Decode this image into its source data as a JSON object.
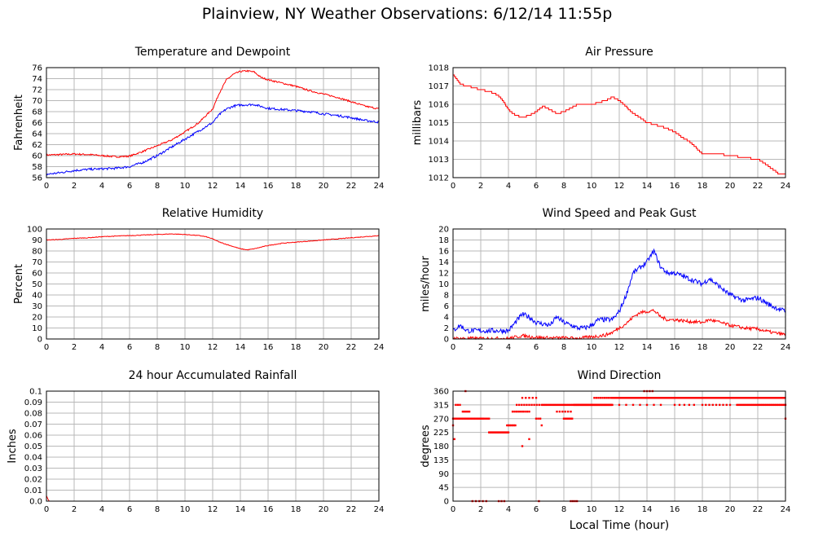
{
  "title": "Plainview, NY Weather Observations: 6/12/14 11:55p",
  "x_axis_label": "Local Time (hour)",
  "colors": {
    "primary": "#ff0000",
    "secondary": "#0000ff",
    "grid": "#b8b8b8"
  },
  "chart_data": [
    {
      "id": "temperature",
      "type": "line",
      "title": "Temperature and Dewpoint",
      "ylabel": "Fahrenheit",
      "xlim": [
        0,
        24
      ],
      "ylim": [
        56,
        76
      ],
      "xticks": [
        0,
        2,
        4,
        6,
        8,
        10,
        12,
        14,
        16,
        18,
        20,
        22,
        24
      ],
      "yticks": [
        56,
        58,
        60,
        62,
        64,
        66,
        68,
        70,
        72,
        74,
        76
      ],
      "grid": true,
      "series": [
        {
          "color": "#ff0000",
          "noise": 0.15,
          "x": [
            0,
            1,
            2,
            3,
            4,
            5,
            6,
            7,
            8,
            9,
            10,
            11,
            12,
            12.5,
            13,
            13.5,
            14,
            14.5,
            15,
            15.5,
            16,
            17,
            18,
            19,
            20,
            21,
            22,
            23,
            24
          ],
          "y": [
            60.1,
            60.2,
            60.3,
            60.2,
            60.0,
            59.8,
            59.9,
            60.8,
            61.8,
            62.8,
            64.3,
            66.0,
            68.5,
            71.5,
            73.8,
            74.8,
            75.3,
            75.4,
            75.2,
            74.2,
            73.8,
            73.2,
            72.6,
            71.8,
            71.2,
            70.6,
            69.8,
            69.0,
            68.5
          ]
        },
        {
          "color": "#0000ff",
          "noise": 0.2,
          "x": [
            0,
            1,
            2,
            3,
            4,
            5,
            6,
            7,
            8,
            9,
            10,
            11,
            12,
            12.5,
            13,
            13.5,
            14,
            15,
            16,
            17,
            18,
            19,
            20,
            21,
            22,
            23,
            24
          ],
          "y": [
            56.6,
            56.9,
            57.3,
            57.5,
            57.6,
            57.7,
            58.0,
            58.8,
            60.0,
            61.5,
            63.0,
            64.5,
            66.0,
            67.5,
            68.5,
            69.0,
            69.2,
            69.3,
            68.6,
            68.4,
            68.2,
            68.0,
            67.6,
            67.3,
            66.9,
            66.4,
            66.1
          ]
        }
      ]
    },
    {
      "id": "pressure",
      "type": "line",
      "title": "Air Pressure",
      "ylabel": "millibars",
      "xlim": [
        0,
        24
      ],
      "ylim": [
        1012,
        1018
      ],
      "xticks": [
        0,
        2,
        4,
        6,
        8,
        10,
        12,
        14,
        16,
        18,
        20,
        22,
        24
      ],
      "yticks": [
        1012,
        1013,
        1014,
        1015,
        1016,
        1017,
        1018
      ],
      "grid": true,
      "series": [
        {
          "color": "#ff0000",
          "step": 0.1,
          "noise": 0,
          "x": [
            0,
            0.5,
            1,
            2,
            3,
            3.5,
            4,
            4.5,
            5,
            5.5,
            6,
            6.5,
            7,
            7.5,
            8,
            9,
            10,
            11,
            11.5,
            12,
            13,
            14,
            15,
            16,
            16.5,
            17,
            18,
            19,
            20,
            21,
            22,
            23,
            23.5,
            24
          ],
          "y": [
            1017.6,
            1017.1,
            1017.0,
            1016.8,
            1016.6,
            1016.3,
            1015.7,
            1015.4,
            1015.3,
            1015.4,
            1015.6,
            1015.9,
            1015.7,
            1015.5,
            1015.6,
            1016.0,
            1016.0,
            1016.2,
            1016.4,
            1016.2,
            1015.5,
            1015.0,
            1014.8,
            1014.5,
            1014.2,
            1014.0,
            1013.3,
            1013.3,
            1013.2,
            1013.1,
            1013.0,
            1012.5,
            1012.2,
            1012.2
          ]
        }
      ]
    },
    {
      "id": "humidity",
      "type": "line",
      "title": "Relative Humidity",
      "ylabel": "Percent",
      "xlim": [
        0,
        24
      ],
      "ylim": [
        0,
        100
      ],
      "xticks": [
        0,
        2,
        4,
        6,
        8,
        10,
        12,
        14,
        16,
        18,
        20,
        22,
        24
      ],
      "yticks": [
        0,
        10,
        20,
        30,
        40,
        50,
        60,
        70,
        80,
        90,
        100
      ],
      "grid": true,
      "series": [
        {
          "color": "#ff0000",
          "noise": 0.3,
          "x": [
            0,
            1,
            2,
            3,
            4,
            5,
            6,
            7,
            8,
            9,
            10,
            11,
            11.5,
            12,
            12.5,
            13,
            13.5,
            14,
            14.5,
            15,
            16,
            17,
            18,
            19,
            20,
            21,
            22,
            23,
            24
          ],
          "y": [
            90,
            90.5,
            91.5,
            92,
            93,
            93.5,
            94,
            94.5,
            95,
            95.5,
            95,
            94,
            93,
            91,
            88,
            86,
            84,
            82,
            81,
            82,
            85,
            87,
            88,
            89,
            90,
            91,
            92,
            93,
            94
          ]
        }
      ]
    },
    {
      "id": "wind-speed",
      "type": "line",
      "title": "Wind Speed and Peak Gust",
      "ylabel": "miles/hour",
      "xlim": [
        0,
        24
      ],
      "ylim": [
        0,
        20
      ],
      "xticks": [
        0,
        2,
        4,
        6,
        8,
        10,
        12,
        14,
        16,
        18,
        20,
        22,
        24
      ],
      "yticks": [
        0,
        2,
        4,
        6,
        8,
        10,
        12,
        14,
        16,
        18,
        20
      ],
      "grid": true,
      "series": [
        {
          "color": "#0000ff",
          "noise": 0.45,
          "floor": 0,
          "x": [
            0,
            0.5,
            1,
            2,
            3,
            4,
            4.5,
            5,
            5.5,
            6,
            7,
            7.5,
            8,
            9,
            9.5,
            10,
            10.5,
            11,
            11.5,
            12,
            12.5,
            13,
            13.5,
            14,
            14.5,
            15,
            15.5,
            16,
            17,
            18,
            18.5,
            19,
            20,
            21,
            22,
            23,
            23.5,
            24
          ],
          "y": [
            1.5,
            2.5,
            1.5,
            1.5,
            1.5,
            1.5,
            3,
            4.5,
            4,
            3,
            2.5,
            4,
            3,
            2,
            2,
            2.5,
            3.5,
            3.5,
            3.5,
            5,
            8,
            12,
            13,
            14,
            16,
            13,
            12,
            12,
            11,
            10,
            11,
            10,
            8,
            7,
            7.5,
            6,
            5.5,
            5
          ]
        },
        {
          "color": "#ff0000",
          "noise": 0.3,
          "floor": 0,
          "x": [
            0,
            2,
            4,
            5,
            6,
            7,
            8,
            9,
            10,
            11,
            11.5,
            12,
            12.5,
            13,
            13.5,
            14,
            14.5,
            15,
            15.5,
            16,
            17,
            18,
            18.5,
            19,
            20,
            21,
            22,
            23,
            24
          ],
          "y": [
            0.1,
            0.1,
            0.1,
            0.6,
            0.3,
            0.2,
            0.2,
            0.1,
            0.4,
            0.7,
            1.2,
            2,
            2.8,
            4,
            4.8,
            5,
            5.2,
            4,
            3.5,
            3.5,
            3.2,
            3,
            3.5,
            3.2,
            2.5,
            2,
            1.8,
            1.2,
            0.8
          ]
        }
      ]
    },
    {
      "id": "rainfall",
      "type": "line",
      "title": "24 hour Accumulated Rainfall",
      "ylabel": "Inches",
      "xlim": [
        0,
        24
      ],
      "ylim": [
        0,
        0.1
      ],
      "xticks": [
        0,
        2,
        4,
        6,
        8,
        10,
        12,
        14,
        16,
        18,
        20,
        22,
        24
      ],
      "yticks": [
        0.0,
        0.01,
        0.02,
        0.03,
        0.04,
        0.05,
        0.06,
        0.07,
        0.08,
        0.09,
        0.1
      ],
      "yticklabels": [
        "0.0",
        "0.01",
        "0.02",
        "0.03",
        "0.04",
        "0.05",
        "0.06",
        "0.07",
        "0.08",
        "0.09",
        "0.1"
      ],
      "grid": true,
      "series": [
        {
          "color": "#ff0000",
          "noise": 0,
          "x": [
            0,
            0.1,
            0.2,
            24
          ],
          "y": [
            0.005,
            0.002,
            0.0,
            0.0
          ]
        }
      ]
    },
    {
      "id": "wind-direction",
      "type": "scatter",
      "title": "Wind Direction",
      "ylabel": "degrees",
      "xlabel": "Local Time (hour)",
      "xlim": [
        0,
        24
      ],
      "ylim": [
        0,
        360
      ],
      "xticks": [
        0,
        2,
        4,
        6,
        8,
        10,
        12,
        14,
        16,
        18,
        20,
        22,
        24
      ],
      "yticks": [
        0,
        45,
        90,
        135,
        180,
        225,
        270,
        315,
        360
      ],
      "grid": true,
      "series": [
        {
          "color": "#ff0000",
          "segments": [
            {
              "from": 0.0,
              "to": 2.2,
              "y": 270,
              "step": 0.08
            },
            {
              "from": 0.2,
              "to": 0.6,
              "y": 315,
              "step": 0.15
            },
            {
              "from": 0.7,
              "to": 1.2,
              "y": 293,
              "step": 0.12
            },
            {
              "from": 1.4,
              "to": 2.4,
              "y": 0,
              "step": 0.25
            },
            {
              "from": 2.0,
              "to": 2.6,
              "y": 270,
              "step": 0.12
            },
            {
              "from": 2.6,
              "to": 4.0,
              "y": 225,
              "step": 0.07
            },
            {
              "from": 3.3,
              "to": 3.8,
              "y": 0,
              "step": 0.2
            },
            {
              "from": 3.9,
              "to": 4.5,
              "y": 248,
              "step": 0.1
            },
            {
              "from": 4.3,
              "to": 5.5,
              "y": 293,
              "step": 0.15
            },
            {
              "from": 4.6,
              "to": 6.4,
              "y": 315,
              "step": 0.18
            },
            {
              "from": 5.0,
              "to": 6.0,
              "y": 338,
              "step": 0.25
            },
            {
              "from": 6.0,
              "to": 6.4,
              "y": 270,
              "step": 0.15
            },
            {
              "from": 6.5,
              "to": 8.6,
              "y": 315,
              "step": 0.1
            },
            {
              "from": 7.5,
              "to": 8.5,
              "y": 293,
              "step": 0.2
            },
            {
              "from": 8.0,
              "to": 8.6,
              "y": 270,
              "step": 0.1
            },
            {
              "from": 8.5,
              "to": 9.0,
              "y": 0,
              "step": 0.15
            },
            {
              "from": 8.7,
              "to": 11.5,
              "y": 315,
              "step": 0.05
            },
            {
              "from": 10.2,
              "to": 11.6,
              "y": 338,
              "step": 0.15
            },
            {
              "from": 11.5,
              "to": 24.0,
              "y": 338,
              "step": 0.045
            },
            {
              "from": 12.0,
              "to": 15.0,
              "y": 315,
              "step": 0.5
            },
            {
              "from": 16.0,
              "to": 17.5,
              "y": 315,
              "step": 0.35
            },
            {
              "from": 18.0,
              "to": 20.0,
              "y": 315,
              "step": 0.25
            },
            {
              "from": 20.5,
              "to": 24.0,
              "y": 315,
              "step": 0.1
            },
            {
              "from": 13.8,
              "to": 14.4,
              "y": 360,
              "step": 0.2
            }
          ],
          "points": [
            [
              0.0,
              248
            ],
            [
              0.1,
              203
            ],
            [
              0.9,
              360
            ],
            [
              6.2,
              0
            ],
            [
              5.5,
              203
            ],
            [
              5.0,
              180
            ],
            [
              6.4,
              248
            ],
            [
              24.0,
              270
            ]
          ]
        }
      ]
    }
  ]
}
